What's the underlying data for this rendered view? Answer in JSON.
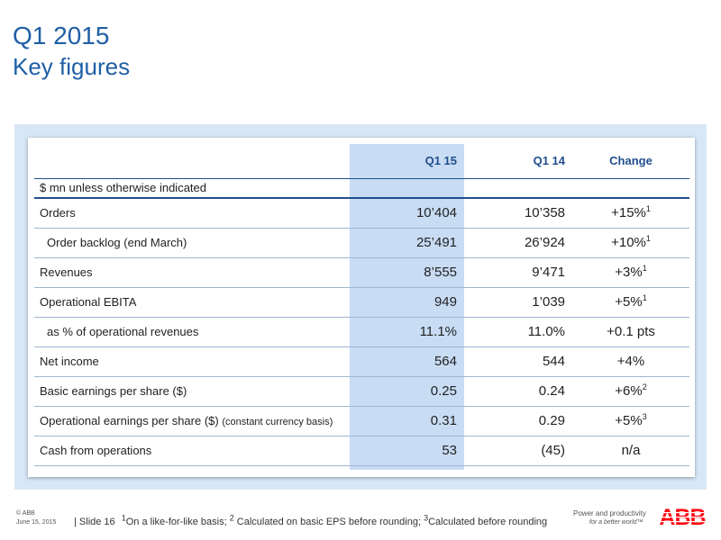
{
  "header": {
    "title": "Q1 2015",
    "subtitle": "Key figures"
  },
  "table": {
    "columns": {
      "q15": "Q1 15",
      "q14": "Q1 14",
      "change": "Change"
    },
    "units_note": "$ mn unless otherwise indicated",
    "rows": [
      {
        "label": "Orders",
        "label_small": "",
        "q15": "10’404",
        "q14": "10’358",
        "change": "+15%",
        "note": "1",
        "indent": false
      },
      {
        "label": "Order backlog (end March)",
        "label_small": "",
        "q15": "25’491",
        "q14": "26’924",
        "change": "+10%",
        "note": "1",
        "indent": true
      },
      {
        "label": "Revenues",
        "label_small": "",
        "q15": "8’555",
        "q14": "9’471",
        "change": "+3%",
        "note": "1",
        "indent": false
      },
      {
        "label": "Operational EBITA",
        "label_small": "",
        "q15": "949",
        "q14": "1’039",
        "change": "+5%",
        "note": "1",
        "indent": false
      },
      {
        "label": "as % of operational revenues",
        "label_small": "",
        "q15": "11.1%",
        "q14": "11.0%",
        "change": "+0.1 pts",
        "note": "",
        "indent": true
      },
      {
        "label": "Net income",
        "label_small": "",
        "q15": "564",
        "q14": "544",
        "change": "+4%",
        "note": "",
        "indent": false
      },
      {
        "label": "Basic earnings per share ($)",
        "label_small": "",
        "q15": "0.25",
        "q14": "0.24",
        "change": "+6%",
        "note": "2",
        "indent": false
      },
      {
        "label": "Operational earnings per share ($)",
        "label_small": "(constant currency basis)",
        "q15": "0.31",
        "q14": "0.29",
        "change": "+5%",
        "note": "3",
        "indent": false
      },
      {
        "label": "Cash from operations",
        "label_small": "",
        "q15": "53",
        "q14": "(45)",
        "change": "n/a",
        "note": "",
        "indent": false
      }
    ]
  },
  "footer": {
    "copyright": "© ABB",
    "date": "June 15, 2015",
    "slide": "| Slide 16",
    "notes": [
      {
        "mark": "1",
        "text": "On a like-for-like basis; "
      },
      {
        "mark": "2",
        "text": " Calculated on basic EPS before rounding; "
      },
      {
        "mark": "3",
        "text": "Calculated before rounding"
      }
    ],
    "tagline_1": "Power and productivity",
    "tagline_2": "for a better world™",
    "logo_text": "ABB",
    "brand_color": "#ff000f"
  }
}
